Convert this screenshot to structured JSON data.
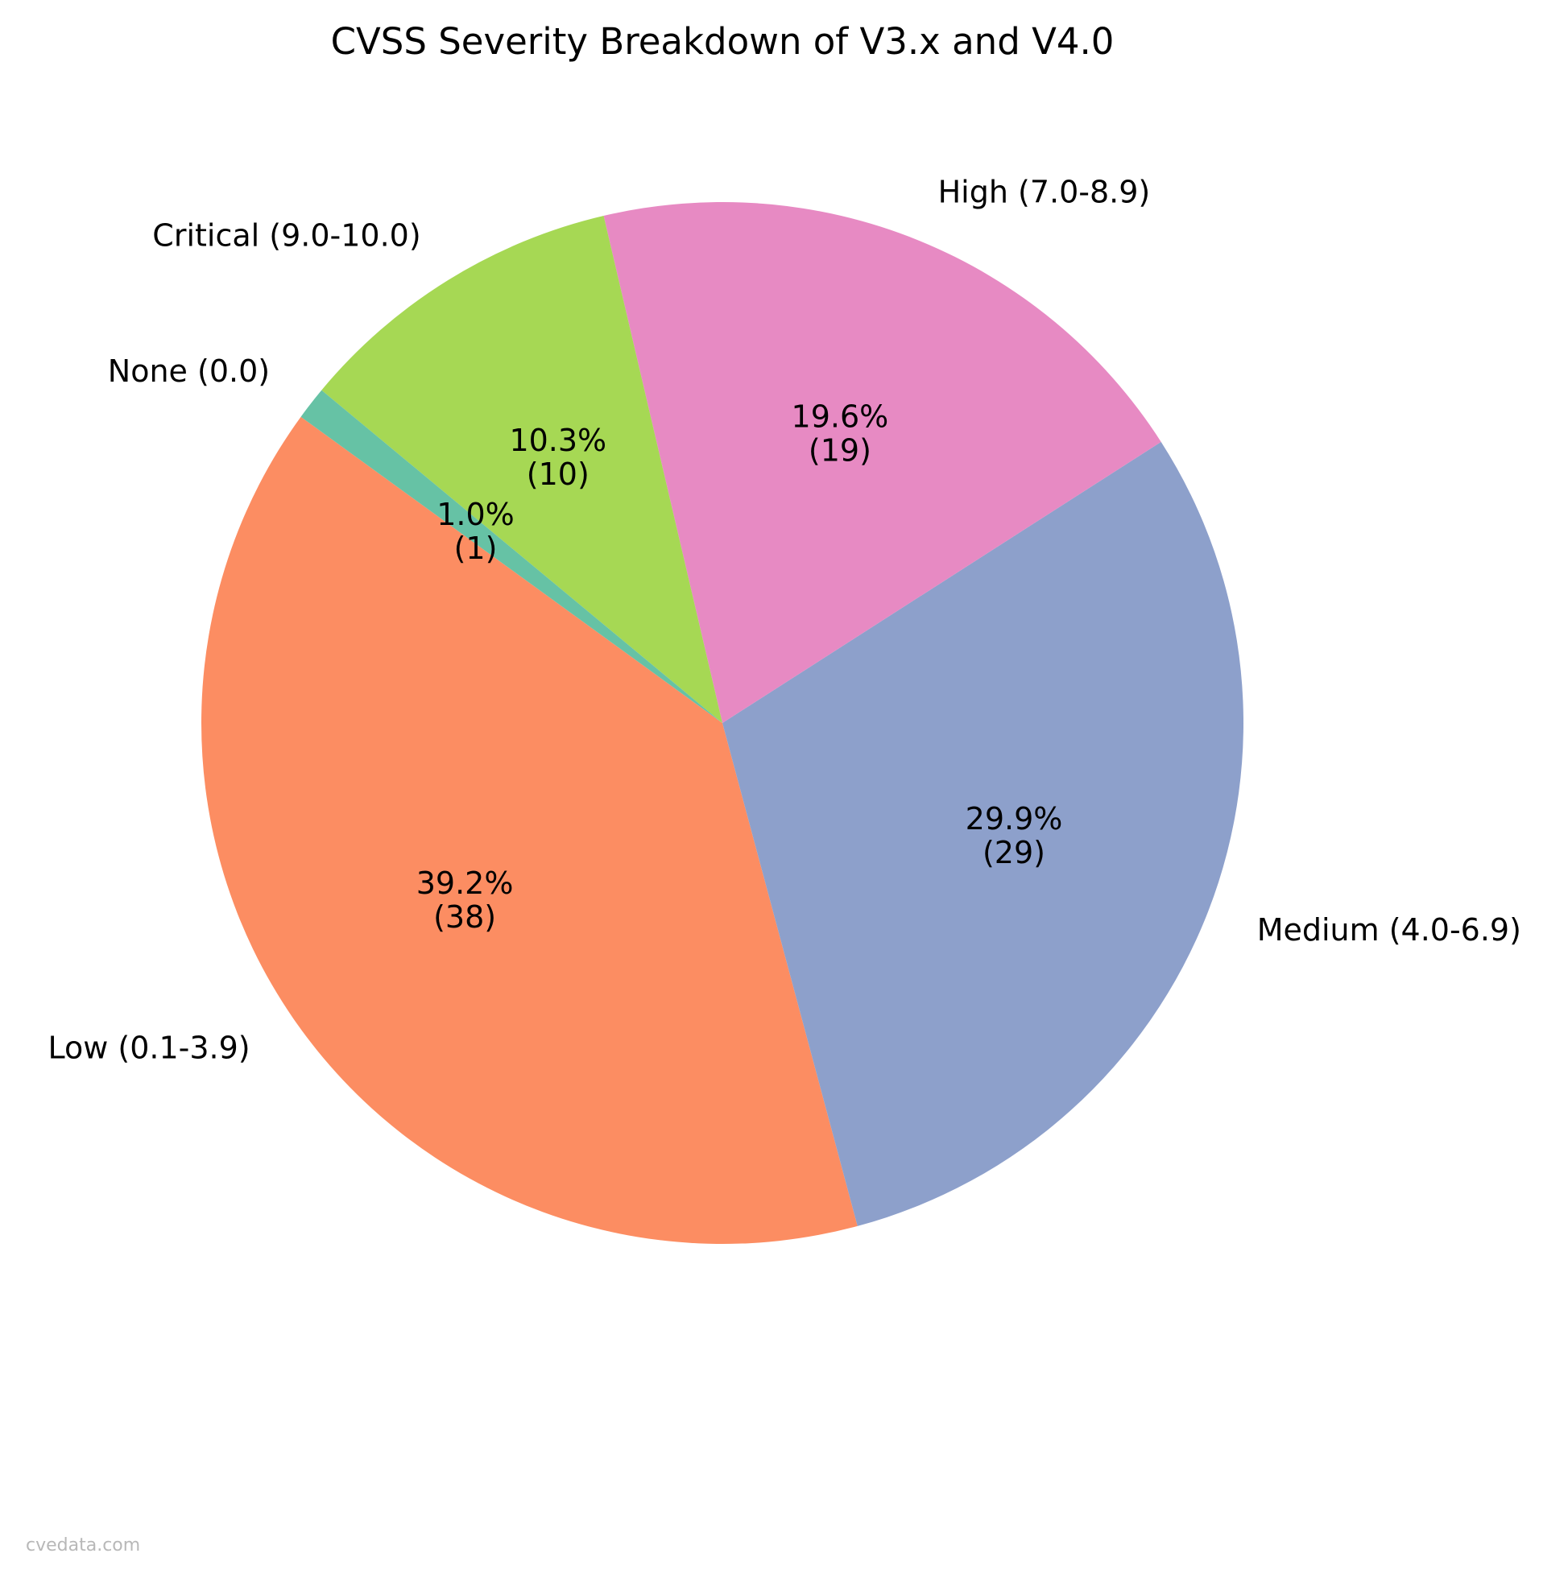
{
  "chart_data": {
    "type": "pie",
    "title": "CVSS Severity Breakdown of V3.x and V4.0",
    "slices": [
      {
        "label": "Low (0.1-3.9)",
        "value": 38,
        "percent": 39.2,
        "pct_text": "39.2%",
        "count_text": "(38)",
        "color": "#fc8d62"
      },
      {
        "label": "Medium (4.0-6.9)",
        "value": 29,
        "percent": 29.9,
        "pct_text": "29.9%",
        "count_text": "(29)",
        "color": "#8da0cb"
      },
      {
        "label": "High (7.0-8.9)",
        "value": 19,
        "percent": 19.6,
        "pct_text": "19.6%",
        "count_text": "(19)",
        "color": "#e78ac3"
      },
      {
        "label": "Critical (9.0-10.0)",
        "value": 10,
        "percent": 10.3,
        "pct_text": "10.3%",
        "count_text": "(10)",
        "color": "#a6d854"
      },
      {
        "label": "None (0.0)",
        "value": 1,
        "percent": 1.0,
        "pct_text": "1.0%",
        "count_text": "(1)",
        "color": "#66c2a5"
      }
    ],
    "start_angle_deg": 144,
    "direction": "counterclockwise"
  },
  "watermark": "cvedata.com"
}
